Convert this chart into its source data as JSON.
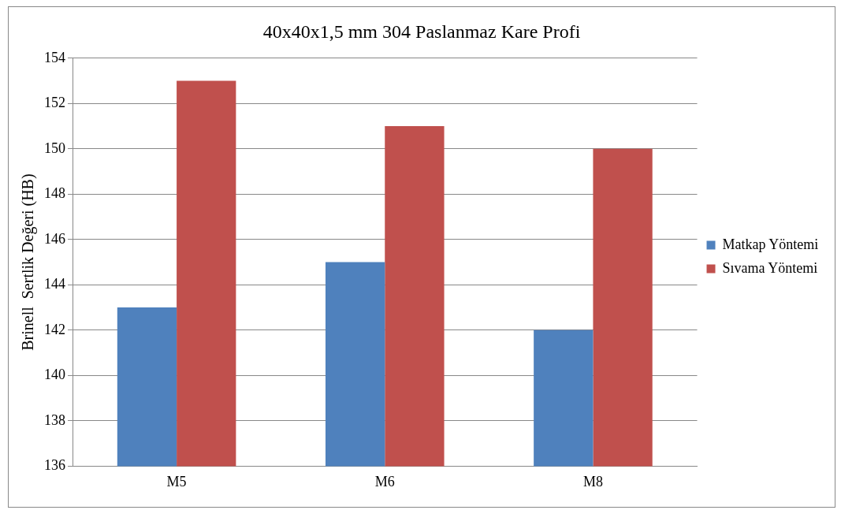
{
  "chart_data": {
    "type": "bar",
    "title": "40x40x1,5 mm 304 Paslanmaz Kare Profi",
    "ylabel": "Brinell  Sertlik Değeri (HB)",
    "categories": [
      "M5",
      "M6",
      "M8"
    ],
    "series": [
      {
        "name": "Matkap Yöntemi",
        "color": "#4f81bd",
        "values": [
          143,
          145,
          142
        ]
      },
      {
        "name": "Sıvama Yöntemi",
        "color": "#c0504d",
        "values": [
          153,
          151,
          150
        ]
      }
    ],
    "ylim": [
      136,
      154
    ],
    "yticks": [
      136,
      138,
      140,
      142,
      144,
      146,
      148,
      150,
      152,
      154
    ],
    "grid": "y",
    "legend": "right"
  }
}
